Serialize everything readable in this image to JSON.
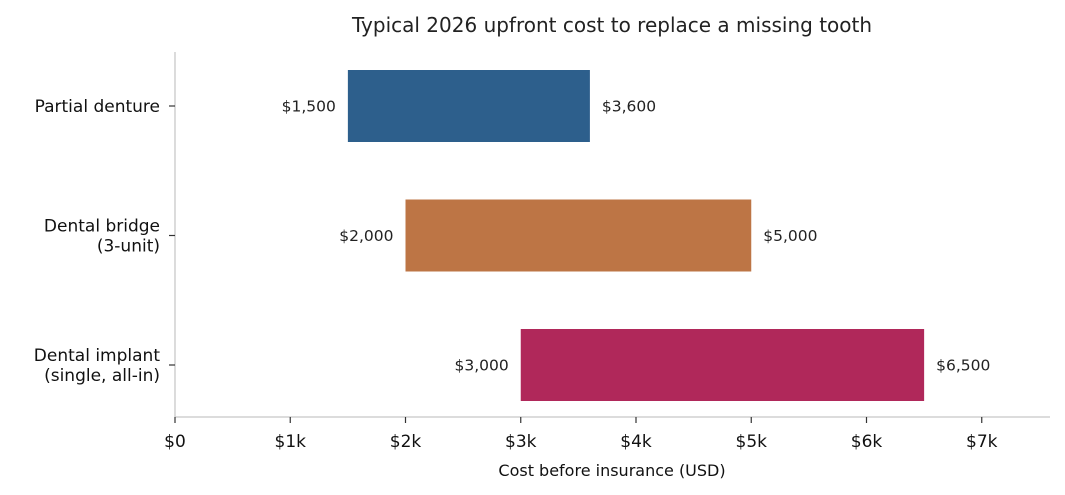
{
  "chart_data": {
    "type": "bar",
    "orientation": "horizontal-range",
    "title": "Typical 2026 upfront cost to replace a missing tooth",
    "xlabel": "Cost before insurance (USD)",
    "ylabel": "",
    "xlim": [
      0,
      7600
    ],
    "grid": false,
    "categories": [
      {
        "lines": [
          "Partial denture"
        ]
      },
      {
        "lines": [
          "Dental bridge",
          "(3-unit)"
        ]
      },
      {
        "lines": [
          "Dental implant",
          "(single, all-in)"
        ]
      }
    ],
    "ranges": [
      {
        "low": 1500,
        "high": 3600,
        "low_label": "$1,500",
        "high_label": "$3,600",
        "color": "#2d5f8c"
      },
      {
        "low": 2000,
        "high": 5000,
        "low_label": "$2,000",
        "high_label": "$5,000",
        "color": "#bd7545"
      },
      {
        "low": 3000,
        "high": 6500,
        "low_label": "$3,000",
        "high_label": "$6,500",
        "color": "#b0285a"
      }
    ],
    "x_ticks": [
      {
        "value": 0,
        "label": "$0"
      },
      {
        "value": 1000,
        "label": "$1k"
      },
      {
        "value": 2000,
        "label": "$2k"
      },
      {
        "value": 3000,
        "label": "$3k"
      },
      {
        "value": 4000,
        "label": "$4k"
      },
      {
        "value": 5000,
        "label": "$5k"
      },
      {
        "value": 6000,
        "label": "$6k"
      },
      {
        "value": 7000,
        "label": "$7k"
      }
    ]
  }
}
